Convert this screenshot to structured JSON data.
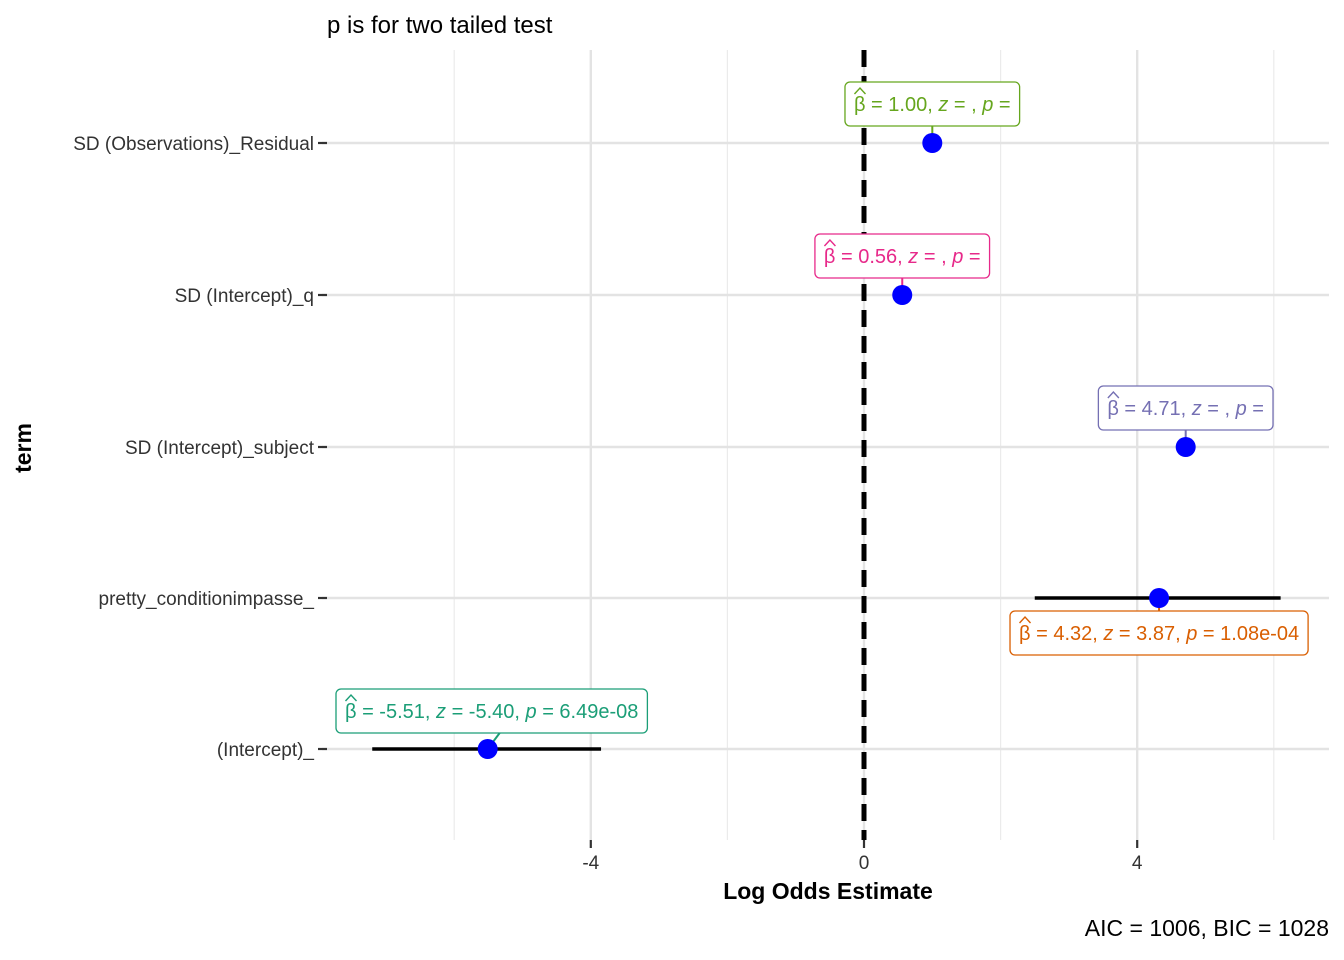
{
  "chart_data": {
    "type": "forest",
    "subtitle": "p is for two tailed test",
    "xlabel": "Log Odds Estimate",
    "ylabel": "term",
    "caption": "AIC = 1006, BIC = 1028",
    "xlim": [
      -7.88,
      6.8
    ],
    "xticks": [
      -4,
      0,
      4
    ],
    "xtick_labels": [
      "-4",
      "0",
      "4"
    ],
    "x_minor_gridlines": [
      -6,
      -2,
      2,
      6
    ],
    "reference_line": 0,
    "point_color": "#0000ff",
    "terms": [
      {
        "term": "SD (Observations)_Residual",
        "estimate": 1.0,
        "ci_low": null,
        "ci_high": null,
        "label_parts": {
          "beta": "1.00",
          "z": "",
          "p": ""
        },
        "label_color": "#66a61e",
        "label_side": "above"
      },
      {
        "term": "SD (Intercept)_q",
        "estimate": 0.56,
        "ci_low": null,
        "ci_high": null,
        "label_parts": {
          "beta": "0.56",
          "z": "",
          "p": ""
        },
        "label_color": "#e7298a",
        "label_side": "above"
      },
      {
        "term": "SD (Intercept)_subject",
        "estimate": 4.71,
        "ci_low": null,
        "ci_high": null,
        "label_parts": {
          "beta": "4.71",
          "z": "",
          "p": ""
        },
        "label_color": "#7570b3",
        "label_side": "above"
      },
      {
        "term": "pretty_conditionimpasse_",
        "estimate": 4.32,
        "ci_low": 2.5,
        "ci_high": 6.1,
        "label_parts": {
          "beta": "4.32",
          "z": "3.87",
          "p": "1.08e-04"
        },
        "label_color": "#d95f02",
        "label_side": "below"
      },
      {
        "term": "(Intercept)_",
        "estimate": -5.51,
        "ci_low": -7.2,
        "ci_high": -3.85,
        "label_parts": {
          "beta": "-5.51",
          "z": "-5.40",
          "p": "6.49e-08"
        },
        "label_color": "#1b9e77",
        "label_side": "above-left"
      }
    ]
  }
}
